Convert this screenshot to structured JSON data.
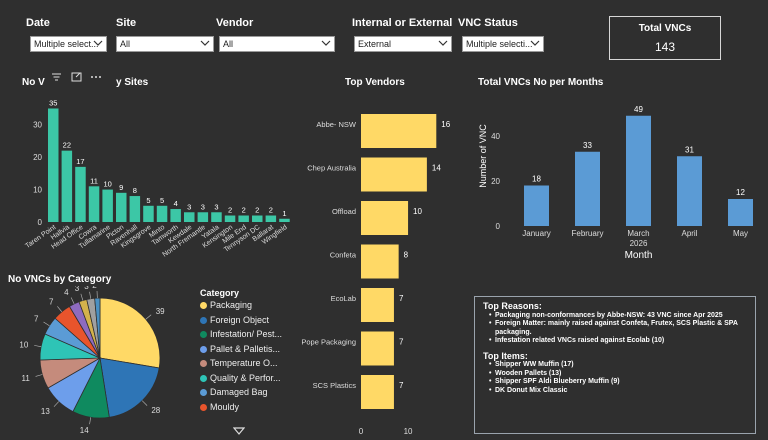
{
  "filters": [
    {
      "label": "Date",
      "value": "Multiple select..."
    },
    {
      "label": "Site",
      "value": "All"
    },
    {
      "label": "Vendor",
      "value": "All"
    },
    {
      "label": "Internal or External",
      "value": "External"
    },
    {
      "label": "VNC Status",
      "value": "Multiple selecti..."
    }
  ],
  "total_card": {
    "title": "Total VNCs",
    "value": "143"
  },
  "sites_chart": {
    "title_left": "No V",
    "title_right": "y Sites",
    "toolbar_icons": [
      "filter-icon",
      "focus-mode-icon",
      "more-options-icon"
    ]
  },
  "vendors_title": "Top Vendors",
  "months_title": "Total VNCs No per Months",
  "category_title": "No VNCs by Category",
  "legend": {
    "title": "Category",
    "items": [
      {
        "label": "Packaging",
        "color": "#ffd966"
      },
      {
        "label": "Foreign Object",
        "color": "#2e75b6"
      },
      {
        "label": "Infestation/ Pest...",
        "color": "#0f8a5f"
      },
      {
        "label": "Pallet & Palletis...",
        "color": "#6d9eeb"
      },
      {
        "label": "Temperature O...",
        "color": "#c58b7c"
      },
      {
        "label": "Quality & Perfor...",
        "color": "#2ec4b6"
      },
      {
        "label": "Damaged Bag",
        "color": "#5b9bd5"
      },
      {
        "label": "Mouldy",
        "color": "#e8542c"
      }
    ]
  },
  "reasons": {
    "heading1": "Top Reasons:",
    "reasons": [
      "Packaging non-conformances by Abbe-NSW: 43 VNC since Apr 2025",
      "Foreign Matter: mainly raised against Confeta, Frutex, SCS Plastic & SPA packaging.",
      "Infestation related VNCs raised against Ecolab (10)"
    ],
    "heading2": "Top Items:",
    "items": [
      "Shipper WW Muffin (17)",
      "Wooden Pallets (13)",
      "Shipper SPF Aldi Blueberry Muffin (9)",
      "DK Donut Mix Classic"
    ]
  },
  "chart_data": [
    {
      "type": "bar",
      "categories": [
        "Taren Point",
        "Hallvia",
        "Head Office",
        "Cowra",
        "Tullamarine",
        "Picton",
        "Ravenhall",
        "Kingsgrove",
        "Minto",
        "Tamworth",
        "Kewdale",
        "North Fremantle",
        "Yatala",
        "Kensington",
        "Mile End",
        "Tennyson DC",
        "Ballarat",
        "Wingfield"
      ],
      "values": [
        35,
        22,
        17,
        11,
        10,
        9,
        8,
        5,
        5,
        4,
        3,
        3,
        3,
        2,
        2,
        2,
        2,
        1
      ],
      "ylim": [
        0,
        37
      ],
      "yticks": [
        0,
        10,
        20,
        30
      ],
      "color": "#3cc7a6"
    },
    {
      "type": "bar",
      "orientation": "horizontal",
      "categories": [
        "Abbe- NSW",
        "Chep Australia",
        "Offload",
        "Confeta",
        "EcoLab",
        "Pope Packaging",
        "SCS Plastics"
      ],
      "values": [
        16,
        14,
        10,
        8,
        7,
        7,
        7
      ],
      "xlim": [
        0,
        17
      ],
      "xticks": [
        0,
        10
      ],
      "color": "#ffd966"
    },
    {
      "type": "bar",
      "categories": [
        "January",
        "February",
        "March",
        "April",
        "May"
      ],
      "values": [
        18,
        33,
        49,
        31,
        12
      ],
      "xlabel_sub": "2026",
      "xlabel": "Month",
      "ylabel": "Number of VNC",
      "ylim": [
        0,
        52
      ],
      "yticks": [
        0,
        20,
        40
      ],
      "color": "#5b9bd5"
    },
    {
      "type": "pie",
      "values": [
        39,
        28,
        14,
        13,
        11,
        10,
        7,
        7,
        4,
        3,
        3,
        2
      ],
      "labels": [
        "39",
        "28",
        "14",
        "13",
        "11",
        "10",
        "7",
        "7",
        "4",
        "3",
        "3",
        "2"
      ],
      "colors": [
        "#ffd966",
        "#2e75b6",
        "#0f8a5f",
        "#6d9eeb",
        "#c58b7c",
        "#2ec4b6",
        "#5b9bd5",
        "#e8542c",
        "#8e6bbf",
        "#d4b24c",
        "#a0a0a0",
        "#4a90c2"
      ]
    }
  ]
}
